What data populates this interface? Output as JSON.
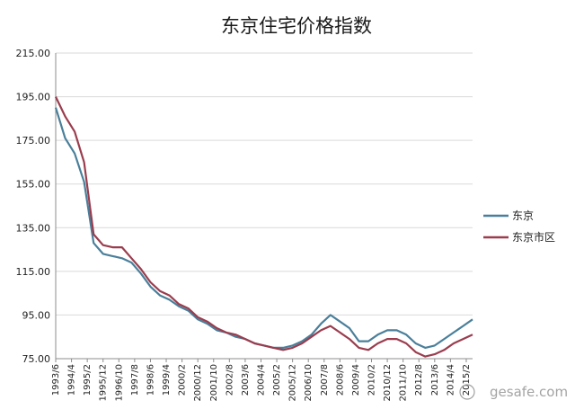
{
  "chart_data": {
    "type": "line",
    "title": "东京住宅价格指数",
    "xlabel": "",
    "ylabel": "",
    "ylim": [
      75,
      215
    ],
    "yticks": [
      "215.00",
      "195.00",
      "175.00",
      "155.00",
      "135.00",
      "115.00",
      "95.00",
      "75.00"
    ],
    "ytick_values": [
      215,
      195,
      175,
      155,
      135,
      115,
      95,
      75
    ],
    "xtick_labels": [
      "1993/6",
      "1994/4",
      "1995/2",
      "1995/12",
      "1996/10",
      "1997/8",
      "1998/6",
      "1999/4",
      "2000/2",
      "2000/12",
      "2001/10",
      "2002/8",
      "2003/6",
      "2004/4",
      "2005/2",
      "2005/12",
      "2006/10",
      "2007/8",
      "2008/6",
      "2009/4",
      "2010/2",
      "2010/12",
      "2011/10",
      "2012/8",
      "2013/6",
      "2014/4",
      "2015/2"
    ],
    "grid": true,
    "legend_position": "right",
    "x": [
      "1993/6",
      "1993/12",
      "1994/6",
      "1994/12",
      "1995/6",
      "1995/12",
      "1996/6",
      "1996/12",
      "1997/6",
      "1997/12",
      "1998/6",
      "1998/12",
      "1999/6",
      "1999/12",
      "2000/6",
      "2000/12",
      "2001/6",
      "2001/12",
      "2002/6",
      "2002/12",
      "2003/6",
      "2003/12",
      "2004/6",
      "2004/12",
      "2005/6",
      "2005/12",
      "2006/6",
      "2006/12",
      "2007/6",
      "2007/12",
      "2008/6",
      "2008/12",
      "2009/6",
      "2009/12",
      "2010/6",
      "2010/12",
      "2011/6",
      "2011/12",
      "2012/6",
      "2012/12",
      "2013/6",
      "2013/12",
      "2014/6",
      "2014/12",
      "2015/6"
    ],
    "series": [
      {
        "name": "东京",
        "color": "#4a7f9a",
        "values": [
          190,
          176,
          169,
          156,
          128,
          123,
          122,
          121,
          119,
          114,
          108,
          104,
          102,
          99,
          97,
          93,
          91,
          88,
          87,
          85,
          84,
          82,
          81,
          80,
          80,
          81,
          83,
          86,
          91,
          95,
          92,
          89,
          83,
          83,
          86,
          88,
          88,
          86,
          82,
          80,
          81,
          84,
          87,
          90,
          93
        ]
      },
      {
        "name": "东京市区",
        "color": "#9a3d4e",
        "values": [
          195,
          186,
          179,
          165,
          132,
          127,
          126,
          126,
          121,
          116,
          110,
          106,
          104,
          100,
          98,
          94,
          92,
          89,
          87,
          86,
          84,
          82,
          81,
          80,
          79,
          80,
          82,
          85,
          88,
          90,
          87,
          84,
          80,
          79,
          82,
          84,
          84,
          82,
          78,
          76,
          77,
          79,
          82,
          84,
          86
        ]
      }
    ]
  },
  "watermark_text": "gesafe.com"
}
